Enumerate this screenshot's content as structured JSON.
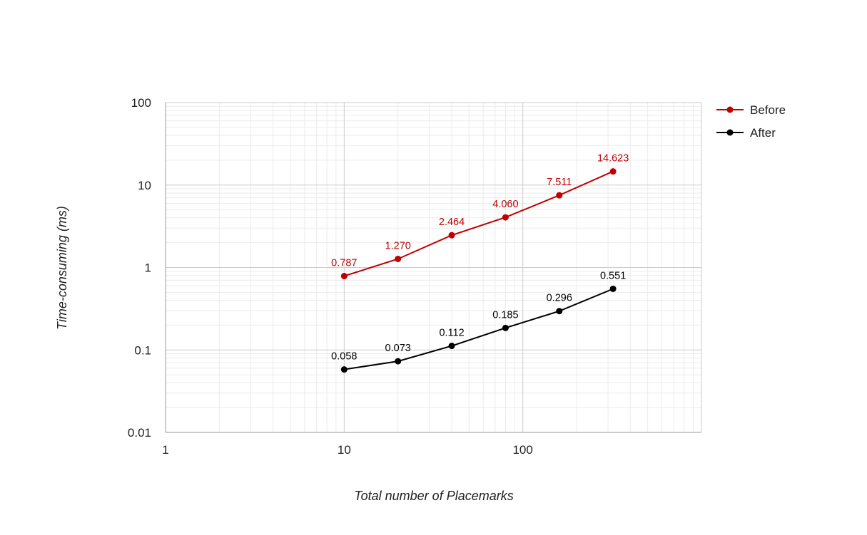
{
  "chart_data": {
    "type": "line",
    "title": "",
    "xlabel": "Total number of Placemarks",
    "ylabel": "Time-consuming (ms)",
    "x_scale": "log",
    "y_scale": "log",
    "xlim": [
      1,
      1000
    ],
    "ylim": [
      0.01,
      100
    ],
    "x_ticks": [
      1,
      10,
      100
    ],
    "x_tick_labels": [
      "1",
      "10",
      "100"
    ],
    "y_ticks": [
      0.01,
      0.1,
      1,
      10,
      100
    ],
    "y_tick_labels": [
      "0.01",
      "0.1",
      "1",
      "10",
      "100"
    ],
    "grid": true,
    "legend_position": "right",
    "x": [
      10,
      20,
      40,
      80,
      160,
      320
    ],
    "series": [
      {
        "name": "Before",
        "color": "#c00000",
        "values": [
          0.787,
          1.27,
          2.464,
          4.06,
          7.511,
          14.623
        ],
        "labels": [
          "0.787",
          "1.270",
          "2.464",
          "4.060",
          "7.511",
          "14.623"
        ]
      },
      {
        "name": "After",
        "color": "#000000",
        "values": [
          0.058,
          0.073,
          0.112,
          0.185,
          0.296,
          0.551
        ],
        "labels": [
          "0.058",
          "0.073",
          "0.112",
          "0.185",
          "0.296",
          "0.551"
        ]
      }
    ]
  }
}
